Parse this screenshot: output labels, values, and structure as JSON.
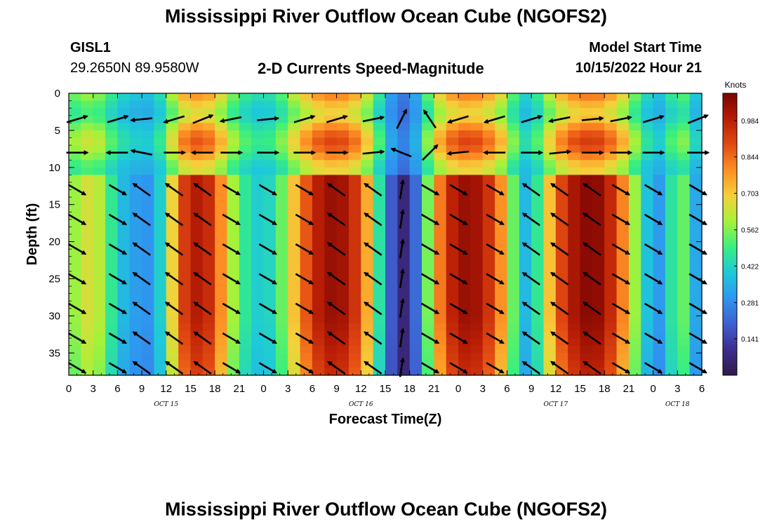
{
  "header": {
    "title": "Mississippi River Outflow Ocean Cube (NGOFS2)",
    "station": "GISL1",
    "coords": "29.2650N  89.9580W",
    "subtitle": "2-D Currents Speed-Magnitude",
    "model_start_label": "Model Start Time",
    "model_start_value": "10/15/2022 Hour 21"
  },
  "footer": {
    "title": "Mississippi River Outflow Ocean Cube (NGOFS2)"
  },
  "chart_data": {
    "type": "heatmap",
    "title": "2-D Currents Speed-Magnitude",
    "xlabel": "Forecast Time(Z)",
    "ylabel": "Depth (ft)",
    "xlim": [
      0,
      78
    ],
    "ylim": [
      0,
      38
    ],
    "x_tick_values": [
      0,
      3,
      6,
      9,
      12,
      15,
      18,
      21,
      24,
      27,
      30,
      33,
      36,
      39,
      42,
      45,
      48,
      51,
      54,
      57,
      60,
      63,
      66,
      69,
      72,
      75,
      78
    ],
    "x_tick_labels": [
      "0",
      "3",
      "6",
      "9",
      "12",
      "15",
      "18",
      "21",
      "0",
      "3",
      "6",
      "9",
      "12",
      "15",
      "18",
      "21",
      "0",
      "3",
      "6",
      "9",
      "12",
      "15",
      "18",
      "21",
      "0",
      "3",
      "6"
    ],
    "date_labels": [
      {
        "at": 12,
        "text": "OCT 15"
      },
      {
        "at": 36,
        "text": "OCT 16"
      },
      {
        "at": 60,
        "text": "OCT 17"
      },
      {
        "at": 75,
        "text": "OCT 18"
      }
    ],
    "y_ticks": [
      0,
      5,
      10,
      15,
      20,
      25,
      30,
      35
    ],
    "colorbar": {
      "label": "Knots",
      "min": 0.0,
      "max": 1.09,
      "ticks": [
        "0.141",
        "0.281",
        "0.422",
        "0.562",
        "0.703",
        "0.844",
        "0.984"
      ],
      "colors": [
        "#301a4a",
        "#3d2e8f",
        "#3f5fd0",
        "#2f95f0",
        "#1ec9d9",
        "#38ef80",
        "#a6f23a",
        "#f5d03a",
        "#fe8f24",
        "#e24a12",
        "#b81d05",
        "#7a0403"
      ]
    },
    "time_hours": [
      0,
      1.5,
      3,
      4.5,
      6,
      7.5,
      9,
      10.5,
      12,
      13.5,
      15,
      16.5,
      18,
      19.5,
      21,
      22.5,
      24,
      25.5,
      27,
      28.5,
      30,
      31.5,
      33,
      34.5,
      36,
      37.5,
      39,
      40.5,
      42,
      43.5,
      45,
      46.5,
      48,
      49.5,
      51,
      52.5,
      54,
      55.5,
      57,
      58.5,
      60,
      61.5,
      63,
      64.5,
      66,
      67.5,
      69,
      70.5,
      72,
      73.5,
      75,
      76.5,
      78
    ],
    "depth_ft": [
      0,
      1,
      2,
      3,
      4,
      5,
      6,
      7,
      8,
      9,
      10,
      11,
      12,
      13,
      14,
      15,
      16,
      17,
      18,
      19,
      20,
      21,
      22,
      23,
      24,
      25,
      26,
      27,
      28,
      29,
      30,
      31,
      32,
      33,
      34,
      35,
      36,
      37,
      38
    ],
    "profile_speed_knots": [
      0.55,
      0.62,
      0.68,
      0.55,
      0.4,
      0.33,
      0.3,
      0.3,
      0.52,
      0.85,
      1.0,
      0.99,
      0.92,
      0.67,
      0.52,
      0.42,
      0.4,
      0.45,
      0.63,
      0.8,
      0.95,
      1.03,
      1.05,
      1.0,
      0.88,
      0.62,
      0.3,
      0.08,
      0.06,
      0.38,
      0.72,
      0.93,
      1.03,
      1.05,
      1.0,
      0.88,
      0.7,
      0.38,
      0.35,
      0.6,
      0.83,
      0.98,
      1.05,
      1.08,
      1.03,
      0.9,
      0.72,
      0.45,
      0.32,
      0.3,
      0.62,
      0.45,
      0.22
    ],
    "surface_factor": [
      0.9,
      0.7,
      0.55,
      0.8,
      1.0,
      1.0,
      0.85,
      0.65,
      0.55
    ],
    "surface_depths": [
      0,
      1,
      3,
      4.5,
      6,
      7,
      8.2,
      9.5,
      11
    ],
    "vectors": {
      "x_hours": [
        1,
        6,
        9,
        13,
        16.5,
        20,
        24.5,
        29,
        33,
        37.5,
        41,
        44.5,
        48,
        52.5,
        57,
        60.5,
        64.5,
        68,
        72,
        77.5
      ],
      "depths": [
        3.5,
        8,
        13,
        17,
        21,
        25,
        29,
        33,
        37
      ],
      "upper_band": [
        {
          "layer": 3.5,
          "dx": [
            1,
            1,
            -1,
            -1,
            1,
            -1,
            1,
            1,
            1,
            1,
            0.5,
            -0.4,
            -1,
            -1,
            1,
            -1,
            1,
            1,
            1,
            1
          ],
          "dy": [
            0.3,
            0.3,
            -0.1,
            -0.3,
            0.4,
            -0.2,
            0.1,
            0.3,
            0.3,
            0.2,
            1,
            0.6,
            -0.3,
            -0.3,
            0.3,
            -0.2,
            0.1,
            0.2,
            0.3,
            0.4
          ]
        },
        {
          "layer": 8,
          "dx": [
            1,
            -1,
            -1,
            1,
            -1,
            1,
            1,
            1,
            1,
            1,
            -1,
            0.4,
            -1,
            -1,
            1,
            1,
            1,
            1,
            1,
            1
          ],
          "dy": [
            0,
            0,
            0.2,
            0,
            0,
            0,
            0,
            0,
            0,
            0.1,
            0.4,
            0.4,
            -0.1,
            0,
            0,
            0.1,
            0,
            0,
            0,
            0
          ]
        }
      ],
      "lower_layers_direction": "alternating: down-right during flood, up-left during ebb"
    }
  }
}
